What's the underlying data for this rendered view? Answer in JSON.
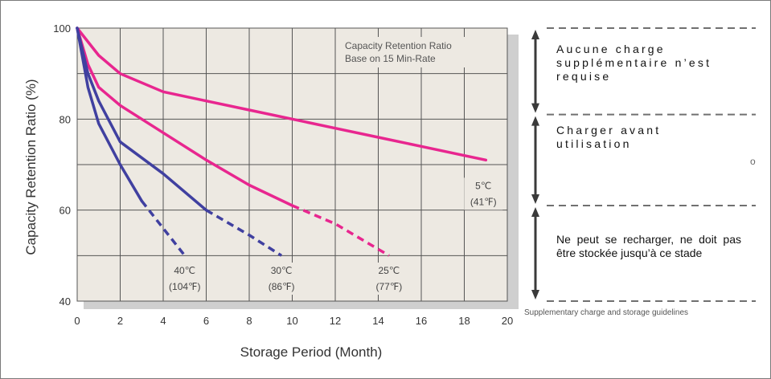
{
  "chart_data": {
    "type": "line",
    "xlabel": "Storage Period (Month)",
    "ylabel": "Capacity Retention Ratio (%)",
    "xlim": [
      0,
      20
    ],
    "ylim": [
      40,
      100
    ],
    "x_ticks": [
      "0",
      "2",
      "4",
      "6",
      "8",
      "10",
      "12",
      "14",
      "16",
      "18",
      "20"
    ],
    "y_ticks": [
      "40",
      "60",
      "80",
      "100"
    ],
    "annotation": [
      "Capacity Retention Ratio",
      "Base on 15 Min-Rate"
    ],
    "grid": true,
    "series": [
      {
        "name_c": "5℃",
        "name_f": "(41℉)",
        "color": "#e8268f",
        "points": [
          [
            0,
            100
          ],
          [
            1,
            94
          ],
          [
            2,
            90
          ],
          [
            4,
            86
          ],
          [
            6,
            84
          ],
          [
            8,
            82
          ],
          [
            10,
            80
          ],
          [
            12,
            78
          ],
          [
            14,
            76
          ],
          [
            16,
            74
          ],
          [
            18,
            72
          ],
          [
            19,
            71
          ]
        ],
        "dashed_from": null
      },
      {
        "name_c": "25℃",
        "name_f": "(77℉)",
        "color": "#e8268f",
        "points": [
          [
            0,
            100
          ],
          [
            0.5,
            92
          ],
          [
            1,
            87
          ],
          [
            2,
            83
          ],
          [
            4,
            77
          ],
          [
            6,
            71
          ],
          [
            8,
            65.5
          ],
          [
            10,
            61
          ],
          [
            12,
            57
          ],
          [
            14.5,
            50
          ]
        ],
        "dashed_from": 10
      },
      {
        "name_c": "30℃",
        "name_f": "(86℉)",
        "color": "#4040a0",
        "points": [
          [
            0,
            100
          ],
          [
            0.5,
            90
          ],
          [
            1,
            84
          ],
          [
            2,
            75
          ],
          [
            4,
            68
          ],
          [
            6,
            60
          ],
          [
            8,
            54.5
          ],
          [
            9.5,
            50
          ]
        ],
        "dashed_from": 6
      },
      {
        "name_c": "40℃",
        "name_f": "(104℉)",
        "color": "#4040a0",
        "points": [
          [
            0,
            100
          ],
          [
            0.5,
            87
          ],
          [
            1,
            79
          ],
          [
            2,
            70
          ],
          [
            3,
            62
          ],
          [
            4,
            56
          ],
          [
            5,
            50
          ]
        ],
        "dashed_from": 3
      }
    ]
  },
  "guidelines": {
    "zones": [
      {
        "text": "Aucune charge supplémentaire n’est requise"
      },
      {
        "text": "Charger avant utilisation"
      },
      {
        "text": "Ne peut se recharger, ne doit pas être stockée jusqu’à ce stade"
      }
    ],
    "caption": "Supplementary charge and storage guidelines",
    "stray_mark": "o",
    "arrow_color": "#3a3a3a",
    "dash_color": "#707070"
  }
}
